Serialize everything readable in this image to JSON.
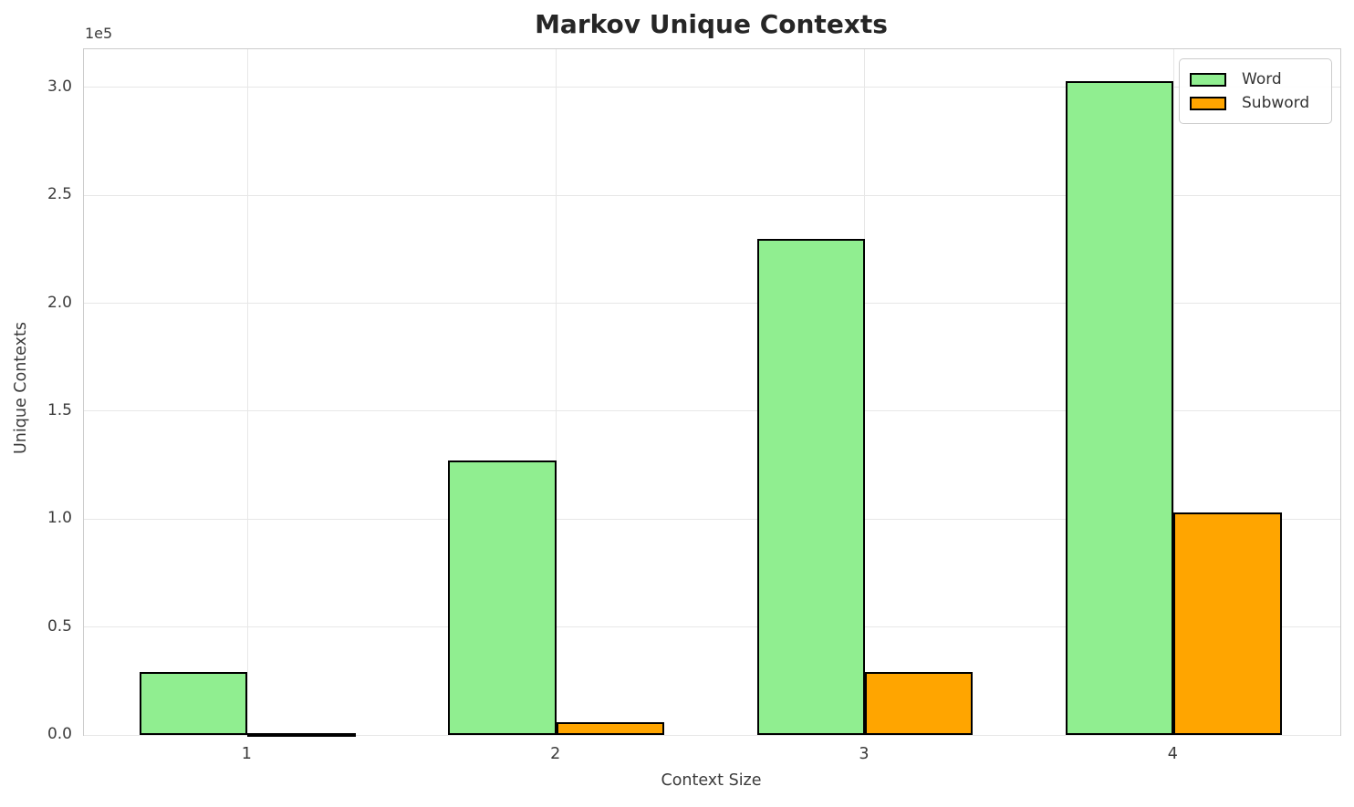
{
  "chart_data": {
    "type": "bar",
    "title": "Markov Unique Contexts",
    "xlabel": "Context Size",
    "ylabel": "Unique Contexts",
    "y_offset_label": "1e5",
    "categories": [
      "1",
      "2",
      "3",
      "4"
    ],
    "series": [
      {
        "name": "Word",
        "color": "#90EE90",
        "edge_color": "#000000",
        "values": [
          29000,
          127000,
          230000,
          303000
        ]
      },
      {
        "name": "Subword",
        "color": "#FFA500",
        "edge_color": "#000000",
        "values": [
          1000,
          6000,
          29000,
          103000
        ]
      }
    ],
    "y_ticks": [
      0.0,
      0.5,
      1.0,
      1.5,
      2.0,
      2.5,
      3.0
    ],
    "y_tick_scale": 100000,
    "y_tick_format_decimals": 1,
    "ylim": [
      0,
      317700
    ],
    "xlim": [
      0.47,
      4.54
    ],
    "bar_width": 0.35,
    "grid": true,
    "grid_color": "#e7e7e7",
    "legend": {
      "position": "upper right"
    }
  }
}
